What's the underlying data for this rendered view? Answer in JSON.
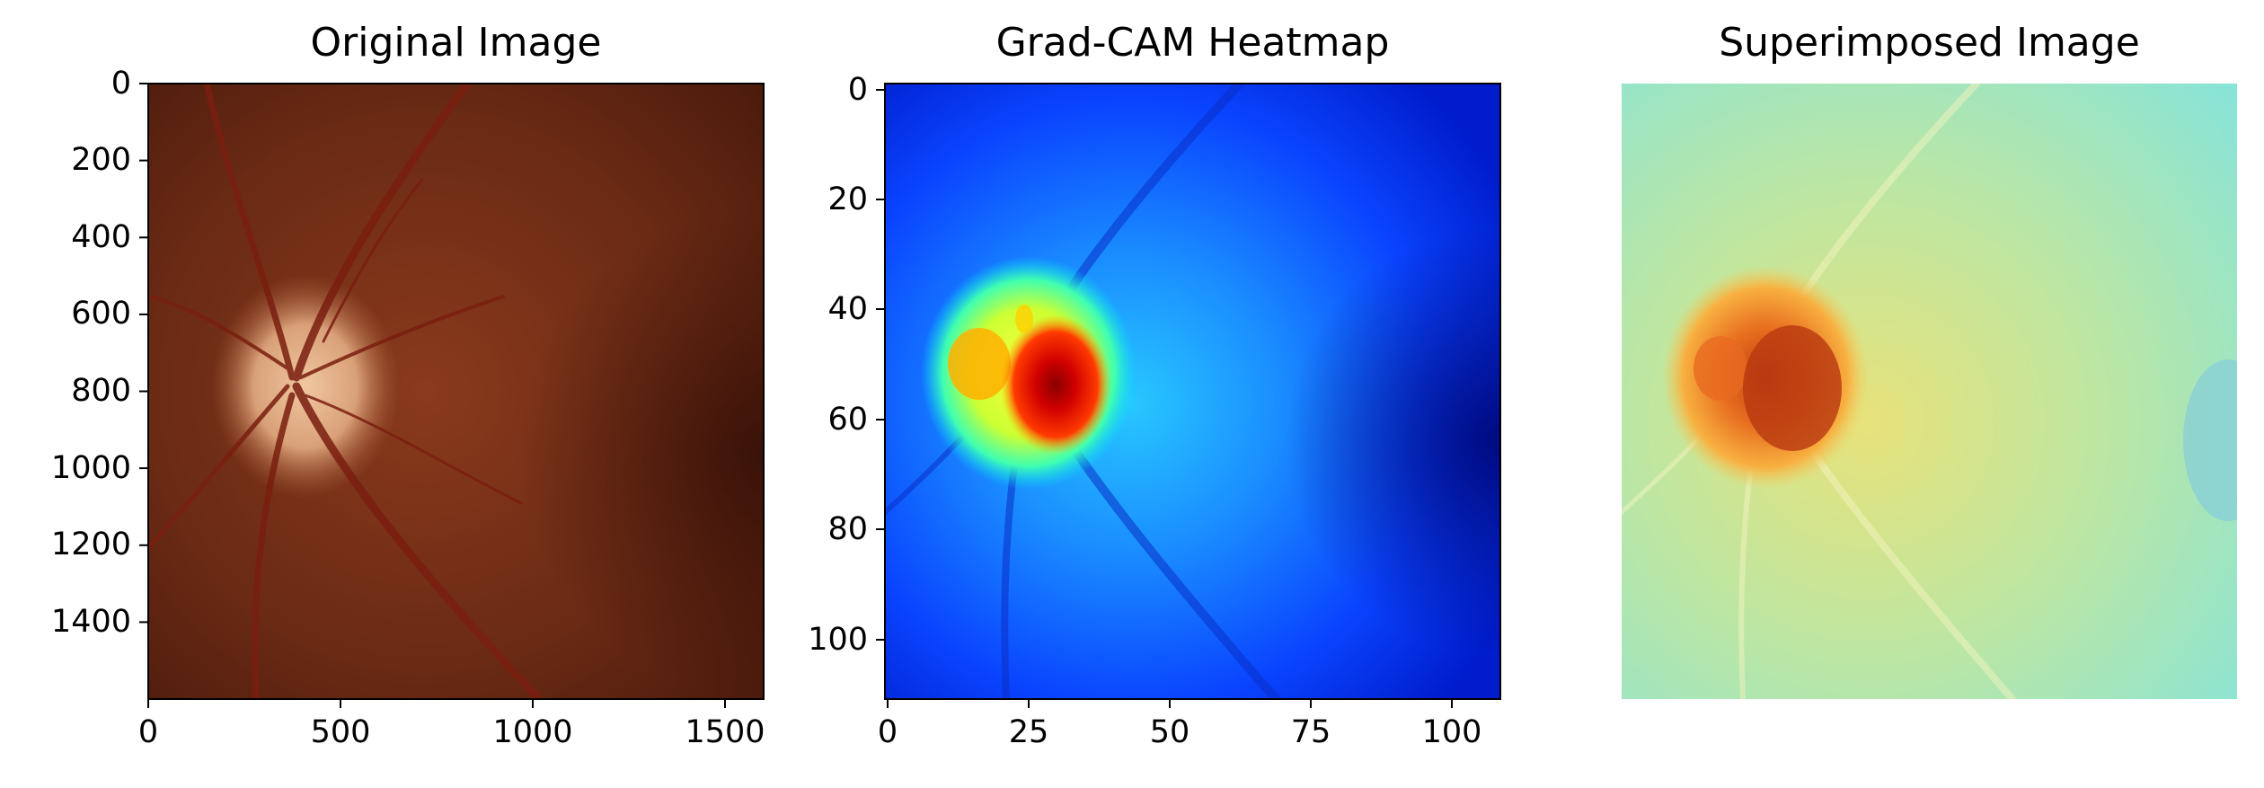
{
  "panels": [
    {
      "title": "Original Image",
      "xticks": [
        "0",
        "500",
        "1000",
        "1500"
      ],
      "yticks": [
        "0",
        "200",
        "400",
        "600",
        "800",
        "1000",
        "1200",
        "1400"
      ],
      "image_size": [
        1600,
        1600
      ]
    },
    {
      "title": "Grad-CAM Heatmap",
      "xticks": [
        "0",
        "25",
        "50",
        "75",
        "100"
      ],
      "yticks": [
        "0",
        "20",
        "40",
        "60",
        "80",
        "100"
      ],
      "image_size": [
        109,
        109
      ]
    },
    {
      "title": "Superimposed Image",
      "axes_visible": false
    }
  ],
  "colors": {
    "fundus_background": "#6e2a14",
    "optic_disc": "#e6b58a",
    "vessel": "#7a1e10",
    "heatmap_low": "#0019ff",
    "heatmap_mid": "#00e5ff",
    "heatmap_high": "#ff0000",
    "overlay_background": "#aee6c8"
  }
}
